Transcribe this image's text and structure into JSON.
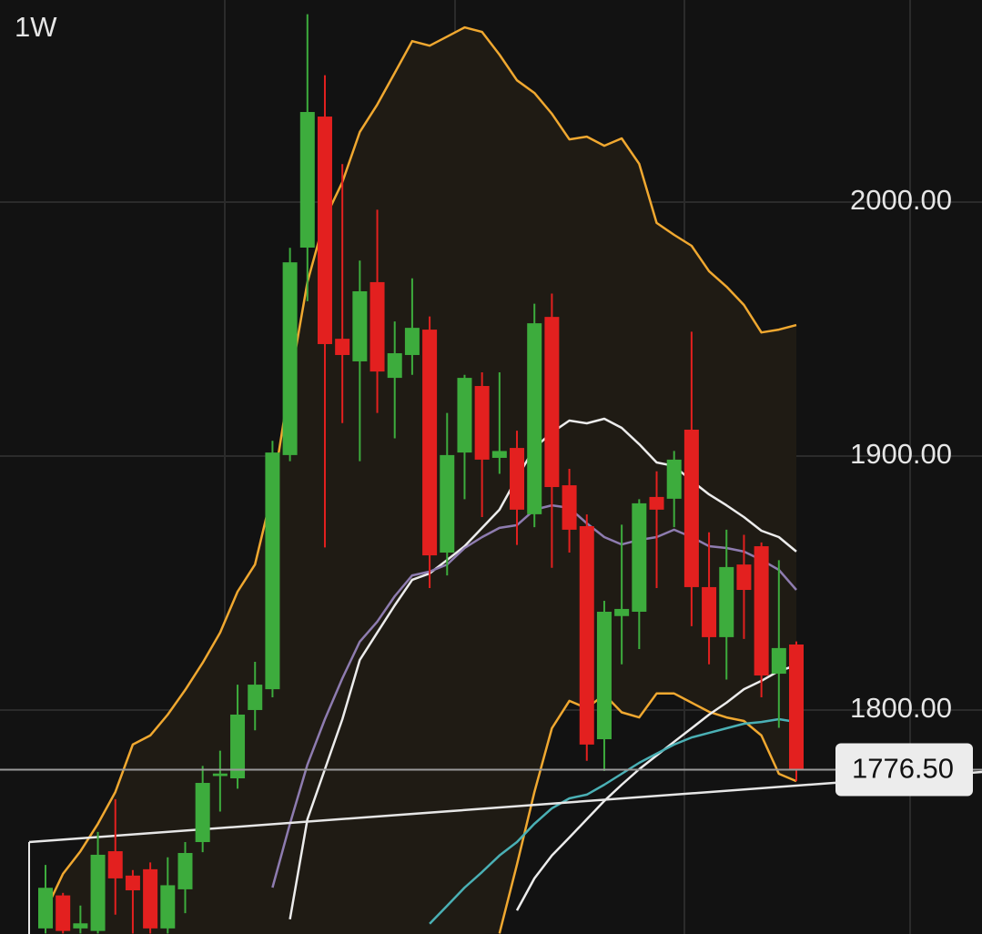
{
  "chart_data": {
    "type": "candlestick",
    "interval": "1W",
    "ylim": [
      1711.8,
      2079.6
    ],
    "yticks": [
      {
        "value": 1800,
        "label": "1800.00"
      },
      {
        "value": 1900,
        "label": "1900.00"
      },
      {
        "value": 2000,
        "label": "2000.00"
      }
    ],
    "grid": true,
    "up_color": "#3dac3d",
    "down_color": "#e3201f",
    "open": [
      1714,
      1727,
      1714,
      1713,
      1744.4,
      1734.8,
      1737.3,
      1714,
      1729.4,
      1748,
      1774,
      1773.1,
      1800,
      1808.2,
      1900.4,
      1982.1,
      2033.7,
      1946.2,
      1937.3,
      1968.5,
      1930.8,
      1939.8,
      1949.8,
      1862,
      1901.4,
      1927.6,
      1899.3,
      1903.2,
      1877.1,
      1954.8,
      1888.5,
      1872.4,
      1788.5,
      1837,
      1838.7,
      1883.9,
      1883.2,
      1910.4,
      1848.4,
      1828.7,
      1857.3,
      1864.5,
      1814.3,
      1825.8
    ],
    "high": [
      1739,
      1728,
      1723,
      1752,
      1764.9,
      1737,
      1740,
      1742,
      1748,
      1778,
      1784,
      1810,
      1819,
      1906,
      1982,
      2074,
      2050,
      2015,
      1977,
      1997,
      1953,
      1970,
      1955,
      1917,
      1932,
      1933,
      1933,
      1910,
      1960,
      1964,
      1895,
      1877,
      1843,
      1873,
      1883,
      1894,
      1902,
      1949,
      1870,
      1871,
      1869,
      1866,
      1859,
      1827
    ],
    "low": [
      1712,
      1712,
      1712,
      1712,
      1719.4,
      1712,
      1712,
      1712,
      1720,
      1744,
      1760,
      1769,
      1792,
      1805,
      1898,
      1961,
      1864,
      1913,
      1898,
      1917,
      1907,
      1932,
      1848,
      1853,
      1883,
      1876,
      1893,
      1865,
      1872,
      1856,
      1862,
      1780,
      1776,
      1818,
      1824,
      1848,
      1872,
      1833,
      1818,
      1812,
      1828,
      1805,
      1793,
      1772
    ],
    "close": [
      1730,
      1713,
      1716,
      1743,
      1733.7,
      1729,
      1714,
      1731,
      1743.7,
      1771.3,
      1775,
      1798.2,
      1810,
      1901.4,
      1976.3,
      2035.5,
      1944.1,
      1939.8,
      1964.9,
      1933.3,
      1940.5,
      1950.5,
      1860.9,
      1900.4,
      1930.8,
      1898.6,
      1902,
      1878.9,
      1952.3,
      1887.8,
      1871,
      1786.4,
      1838.7,
      1839.8,
      1881.4,
      1878.9,
      1898.6,
      1848.4,
      1828.7,
      1856.3,
      1847.3,
      1813.6,
      1824.4,
      1776.5
    ],
    "band": {
      "fill": "#1f1b14",
      "upper": {
        "color": "#f0a830",
        "values": [
          1721,
          1735.5,
          1744.4,
          1755.2,
          1767.7,
          1786.4,
          1790,
          1798.2,
          1807.9,
          1818.6,
          1830.5,
          1846.6,
          1857.3,
          1886,
          1929,
          1968.5,
          1993.5,
          2007.9,
          2027.6,
          2038.4,
          2050.9,
          2063.4,
          2061.6,
          2065.2,
          2068.8,
          2067,
          2058.1,
          2048,
          2043,
          2034.8,
          2024.7,
          2025.8,
          2022.2,
          2025.1,
          2015.1,
          1991.8,
          1987.1,
          1982.8,
          1972.8,
          1966.7,
          1959.5,
          1948.7,
          1949.8,
          1951.6
        ]
      },
      "lower": {
        "color": "#f0a830",
        "values": [
          null,
          null,
          null,
          null,
          null,
          null,
          null,
          null,
          null,
          null,
          null,
          null,
          null,
          null,
          null,
          null,
          null,
          null,
          null,
          null,
          null,
          null,
          null,
          null,
          null,
          null,
          1712,
          1739.1,
          1767.7,
          1792.8,
          1803.6,
          1800.7,
          1806.1,
          1799.1,
          1797.1,
          1806.5,
          1806.5,
          1802.9,
          1799.3,
          1797.1,
          1795.7,
          1790,
          1774.9,
          1772
        ]
      }
    },
    "overlays": [
      {
        "color": "#ececec",
        "values": [
          null,
          null,
          null,
          null,
          null,
          null,
          null,
          null,
          null,
          null,
          null,
          null,
          null,
          null,
          1717.6,
          1757,
          1776.7,
          1796.4,
          1819.7,
          1830.5,
          1841.2,
          1851.3,
          1853.8,
          1859.1,
          1864.5,
          1871.7,
          1878.9,
          1891.4,
          1903.2,
          1909.3,
          1914,
          1912.9,
          1914.7,
          1911.1,
          1904.7,
          1897.5,
          1896.1,
          1890.3,
          1884.9,
          1880.6,
          1876,
          1870.6,
          1868.1,
          1862.4
        ]
      },
      {
        "color": "#8e7cb0",
        "values": [
          null,
          null,
          null,
          null,
          null,
          null,
          null,
          null,
          null,
          null,
          null,
          null,
          null,
          1730.1,
          1755.2,
          1778.5,
          1796.4,
          1812.5,
          1826.9,
          1834.8,
          1844.8,
          1853,
          1854.5,
          1857.3,
          1863.8,
          1868.1,
          1871.7,
          1872.8,
          1878.9,
          1880.6,
          1879.6,
          1873.5,
          1868.1,
          1865.2,
          1867,
          1868.1,
          1871,
          1868.1,
          1864.5,
          1863.8,
          1862.4,
          1859.1,
          1855.2,
          1847.3
        ]
      },
      {
        "color": "#ececec",
        "values": [
          null,
          null,
          null,
          null,
          null,
          null,
          null,
          null,
          null,
          null,
          null,
          null,
          null,
          null,
          null,
          null,
          null,
          null,
          null,
          null,
          null,
          null,
          null,
          null,
          null,
          null,
          null,
          1721.1,
          1733.7,
          1742.7,
          1749.8,
          1757,
          1764.2,
          1770.6,
          1776.7,
          1782.1,
          1787.5,
          1792.8,
          1798.2,
          1802.9,
          1808.2,
          1811.5,
          1815.4,
          1817.6
        ]
      },
      {
        "color": "#4ab0b5",
        "values": [
          null,
          null,
          null,
          null,
          null,
          null,
          null,
          null,
          null,
          null,
          null,
          null,
          null,
          null,
          null,
          null,
          null,
          null,
          null,
          null,
          null,
          null,
          1715.8,
          1722.9,
          1730.1,
          1736.2,
          1742.7,
          1748,
          1755.2,
          1761.3,
          1765.2,
          1766.7,
          1770.6,
          1774.9,
          1779.2,
          1782.8,
          1786.4,
          1789.2,
          1791,
          1792.8,
          1794.6,
          1795.3,
          1796.4,
          1795.3
        ]
      }
    ],
    "trendline": {
      "color": "#e6e6e6",
      "values": [
        1748.0,
        1775.6
      ]
    },
    "last_price": 1776.5,
    "last_price_label": "1776.50"
  }
}
